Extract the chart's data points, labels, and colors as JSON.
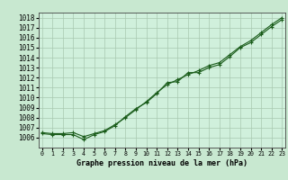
{
  "title": "Graphe pression niveau de la mer (hPa)",
  "background_color": "#c8e8d0",
  "plot_bg_color": "#d0f0dc",
  "grid_color": "#a8c8b0",
  "line_color": "#1a5c1a",
  "x_hours": [
    0,
    1,
    2,
    3,
    4,
    5,
    6,
    7,
    8,
    9,
    10,
    11,
    12,
    13,
    14,
    15,
    16,
    17,
    18,
    19,
    20,
    21,
    22,
    23
  ],
  "line1": [
    1006.4,
    1006.3,
    1006.3,
    1006.3,
    1005.8,
    1006.3,
    1006.6,
    1007.2,
    1008.1,
    1008.9,
    1009.5,
    1010.4,
    1011.5,
    1011.6,
    1012.5,
    1012.5,
    1013.0,
    1013.3,
    1014.1,
    1015.0,
    1015.5,
    1016.3,
    1017.1,
    1017.8
  ],
  "line2": [
    1006.5,
    1006.4,
    1006.4,
    1006.5,
    1006.1,
    1006.4,
    1006.7,
    1007.3,
    1008.0,
    1008.8,
    1009.6,
    1010.5,
    1011.3,
    1011.8,
    1012.3,
    1012.7,
    1013.2,
    1013.5,
    1014.3,
    1015.1,
    1015.7,
    1016.5,
    1017.3,
    1018.0
  ],
  "ylim_min": 1005.0,
  "ylim_max": 1018.5,
  "ytick_min": 1006,
  "ytick_max": 1018,
  "ytick_step": 1,
  "xlim_min": -0.3,
  "xlim_max": 23.3,
  "title_fontsize": 6.0,
  "tick_fontsize_y": 5.5,
  "tick_fontsize_x": 4.8
}
